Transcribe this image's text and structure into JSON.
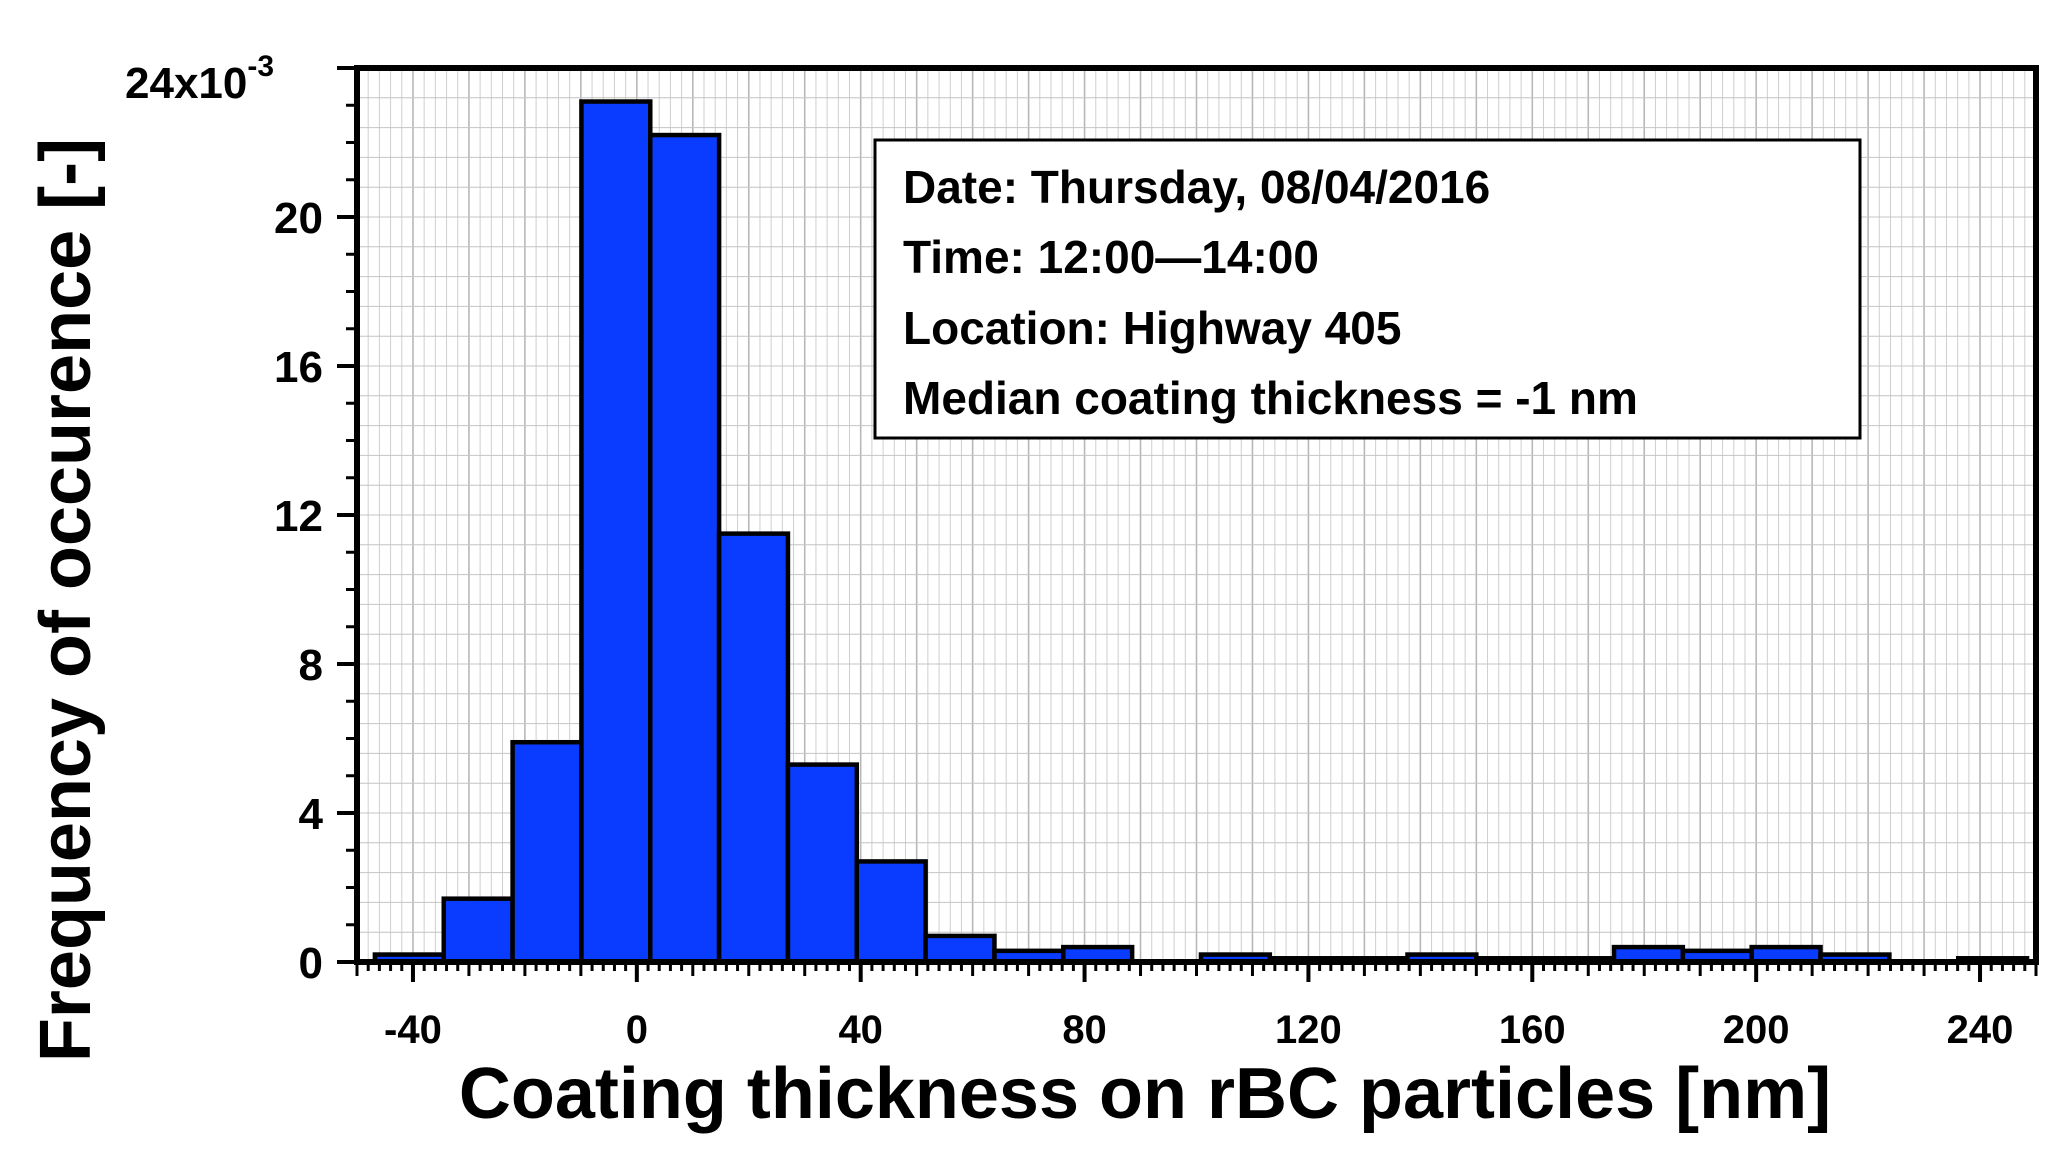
{
  "chart_data": {
    "type": "bar",
    "xlabel": "Coating thickness on rBC particles [nm]",
    "ylabel": "Frequency of occurence [-]",
    "y_multiplier_label": "24x10",
    "y_multiplier_exponent": "-3",
    "xlim": [
      -50,
      250
    ],
    "ylim": [
      0,
      0.024
    ],
    "bin_width": 12.3,
    "x_ticks": [
      -40,
      0,
      40,
      80,
      120,
      160,
      200,
      240
    ],
    "x_tick_labels": [
      "-40",
      "0",
      "40",
      "80",
      "120",
      "160",
      "200",
      "240"
    ],
    "y_ticks": [
      0,
      0.004,
      0.008,
      0.012,
      0.016,
      0.02
    ],
    "y_tick_labels": [
      "0",
      "4",
      "8",
      "12",
      "16",
      "20"
    ],
    "grid": true,
    "bar_color": "#0a3cff",
    "bins": [
      {
        "x": -46.8,
        "value": 0.0002
      },
      {
        "x": -34.5,
        "value": 0.0017
      },
      {
        "x": -22.2,
        "value": 0.0059
      },
      {
        "x": -9.9,
        "value": 0.0231
      },
      {
        "x": 2.4,
        "value": 0.0222
      },
      {
        "x": 14.7,
        "value": 0.0115
      },
      {
        "x": 27.0,
        "value": 0.0053
      },
      {
        "x": 39.3,
        "value": 0.0027
      },
      {
        "x": 51.6,
        "value": 0.0007
      },
      {
        "x": 63.9,
        "value": 0.0003
      },
      {
        "x": 76.2,
        "value": 0.0004
      },
      {
        "x": 88.5,
        "value": 0.0
      },
      {
        "x": 100.8,
        "value": 0.0002
      },
      {
        "x": 113.1,
        "value": 0.0001
      },
      {
        "x": 125.4,
        "value": 0.0001
      },
      {
        "x": 137.7,
        "value": 0.0002
      },
      {
        "x": 150.0,
        "value": 0.0001
      },
      {
        "x": 162.3,
        "value": 0.0001
      },
      {
        "x": 174.6,
        "value": 0.0004
      },
      {
        "x": 186.9,
        "value": 0.0003
      },
      {
        "x": 199.2,
        "value": 0.0004
      },
      {
        "x": 211.5,
        "value": 0.0002
      },
      {
        "x": 223.8,
        "value": 0.0
      },
      {
        "x": 236.1,
        "value": 0.0001
      }
    ],
    "annotation": {
      "lines": [
        "Date: Thursday, 08/04/2016",
        "Time: 12:00—14:00",
        "Location: Highway 405",
        "Median coating thickness = -1 nm"
      ]
    }
  }
}
